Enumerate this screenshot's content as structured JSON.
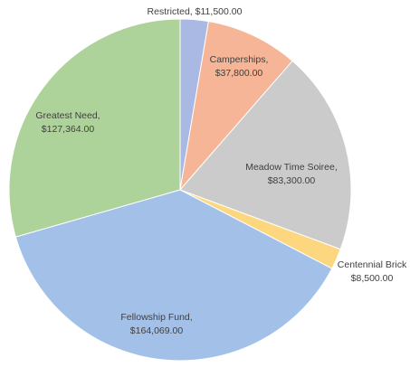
{
  "chart_data": {
    "type": "pie",
    "title": "",
    "slices": [
      {
        "name": "Restricted",
        "value": 11500,
        "name_text": "Restricted,",
        "value_text": "$11,500.00",
        "color": "#a9b9e4"
      },
      {
        "name": "Camperships",
        "value": 37800,
        "name_text": "Camperships,",
        "value_text": "$37,800.00",
        "color": "#f5b596"
      },
      {
        "name": "Meadow Time Soiree",
        "value": 83300,
        "name_text": "Meadow Time Soiree,",
        "value_text": "$83,300.00",
        "color": "#cbcbcb"
      },
      {
        "name": "Centennial Brick",
        "value": 8500,
        "name_text": "Centennial Brick",
        "value_text": "$8,500.00",
        "color": "#fdd77f"
      },
      {
        "name": "Fellowship Fund",
        "value": 164069,
        "name_text": "Fellowship Fund,",
        "value_text": "$164,069.00",
        "color": "#a3c1e8"
      },
      {
        "name": "Greatest Need",
        "value": 127364,
        "name_text": "Greatest Need,",
        "value_text": "$127,364.00",
        "color": "#aed39a"
      }
    ],
    "start_angle": "12 o'clock",
    "direction": "clockwise",
    "legend": "none",
    "data_labels": "category name and value"
  }
}
